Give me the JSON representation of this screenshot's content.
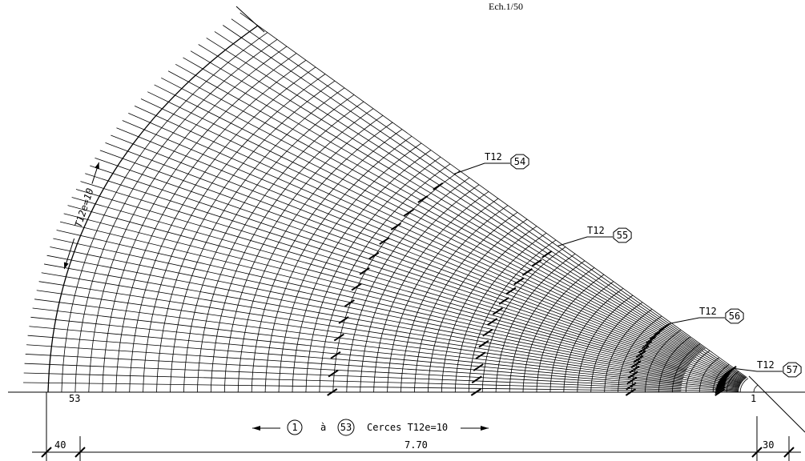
{
  "title": "Ech.1/50",
  "spacing_label": "T12e=10",
  "bars": [
    {
      "label": "T12",
      "mark": "54"
    },
    {
      "label": "T12",
      "mark": "55"
    },
    {
      "label": "T12",
      "mark": "56"
    },
    {
      "label": "T12",
      "mark": "57"
    }
  ],
  "ring_labels": {
    "outer": "53",
    "inner": "1"
  },
  "legend": {
    "from": "1",
    "word": "à",
    "to": "53",
    "text": "Cerces T12e=10"
  },
  "dimensions": [
    "40",
    "7.70",
    "30"
  ]
}
